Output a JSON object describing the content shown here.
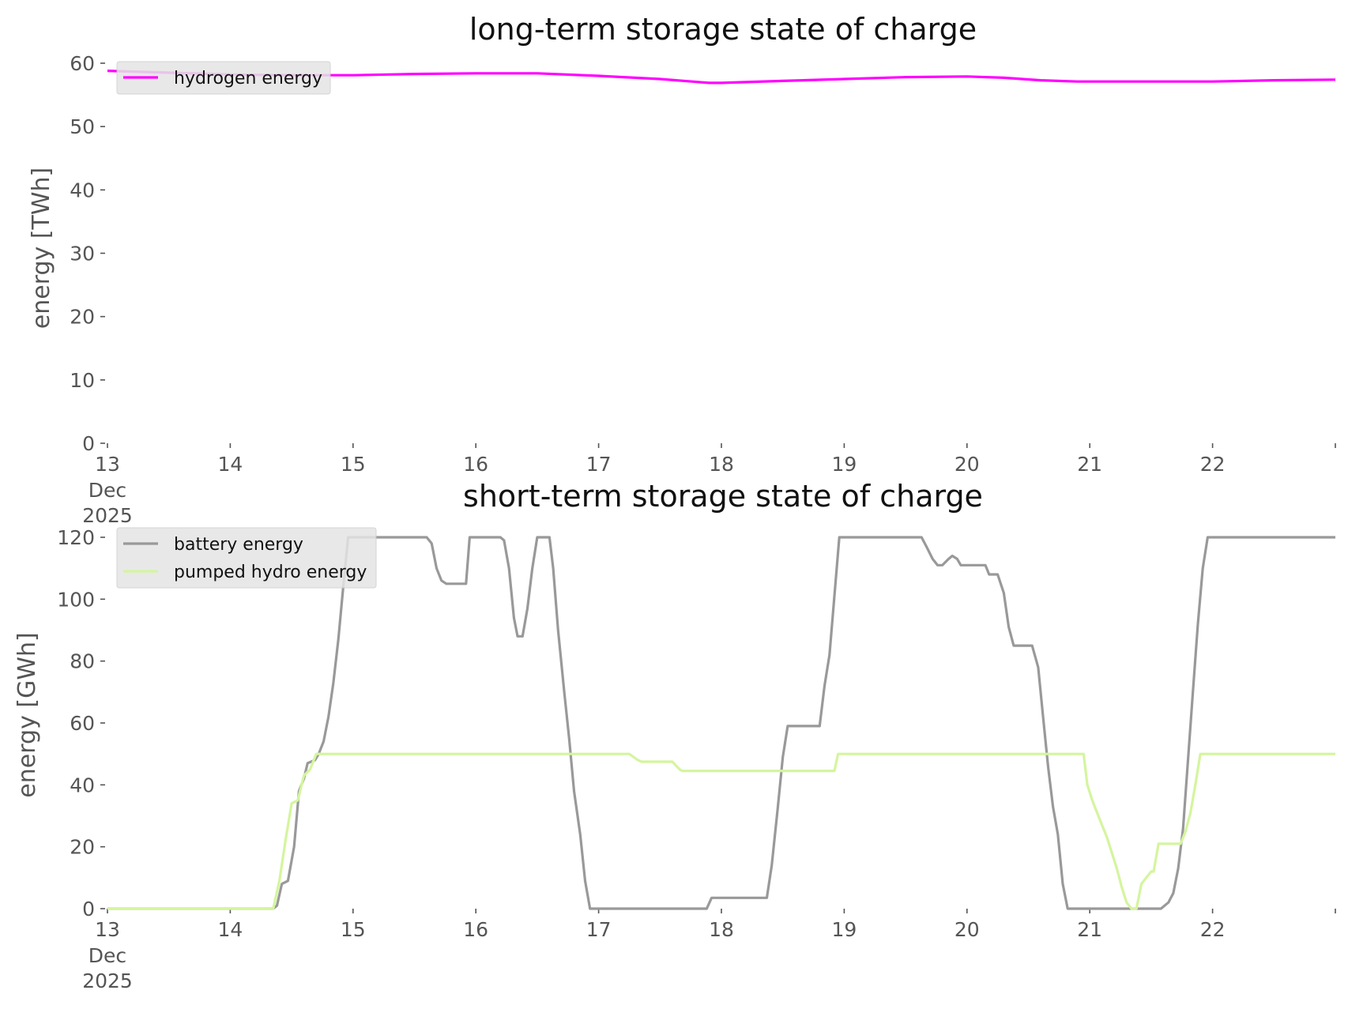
{
  "chart_data": [
    {
      "type": "line",
      "title": "long-term storage state of charge",
      "xlabel": "",
      "ylabel": "energy [TWh]",
      "ylim": [
        0,
        60
      ],
      "yticks": [
        0,
        10,
        20,
        30,
        40,
        50,
        60
      ],
      "xlim": [
        13,
        23
      ],
      "xticks": [
        {
          "value": 13,
          "label": "13"
        },
        {
          "value": 14,
          "label": "14"
        },
        {
          "value": 15,
          "label": "15"
        },
        {
          "value": 16,
          "label": "16"
        },
        {
          "value": 17,
          "label": "17"
        },
        {
          "value": 18,
          "label": "18"
        },
        {
          "value": 19,
          "label": "19"
        },
        {
          "value": 20,
          "label": "20"
        },
        {
          "value": 21,
          "label": "21"
        },
        {
          "value": 22,
          "label": "22"
        }
      ],
      "xtick_sublabels": [
        "Dec",
        "2025"
      ],
      "grid": false,
      "legend": "upper left",
      "series": [
        {
          "name": "hydrogen energy",
          "color": "#ff00ff",
          "points": [
            [
              13.0,
              58.8
            ],
            [
              13.5,
              58.5
            ],
            [
              14.0,
              58.2
            ],
            [
              14.5,
              58.1
            ],
            [
              15.0,
              58.1
            ],
            [
              15.5,
              58.3
            ],
            [
              16.0,
              58.4
            ],
            [
              16.5,
              58.4
            ],
            [
              17.0,
              58.0
            ],
            [
              17.5,
              57.5
            ],
            [
              17.9,
              56.9
            ],
            [
              18.0,
              56.9
            ],
            [
              18.5,
              57.2
            ],
            [
              19.0,
              57.5
            ],
            [
              19.5,
              57.8
            ],
            [
              20.0,
              57.9
            ],
            [
              20.3,
              57.7
            ],
            [
              20.6,
              57.3
            ],
            [
              20.9,
              57.1
            ],
            [
              21.0,
              57.1
            ],
            [
              21.5,
              57.1
            ],
            [
              22.0,
              57.1
            ],
            [
              22.5,
              57.3
            ],
            [
              23.0,
              57.4
            ]
          ]
        }
      ]
    },
    {
      "type": "line",
      "title": "short-term storage state of charge",
      "xlabel": "",
      "ylabel": "energy [GWh]",
      "ylim": [
        0,
        120
      ],
      "yticks": [
        0,
        20,
        40,
        60,
        80,
        100,
        120
      ],
      "xlim": [
        13,
        23
      ],
      "xticks": [
        {
          "value": 13,
          "label": "13"
        },
        {
          "value": 14,
          "label": "14"
        },
        {
          "value": 15,
          "label": "15"
        },
        {
          "value": 16,
          "label": "16"
        },
        {
          "value": 17,
          "label": "17"
        },
        {
          "value": 18,
          "label": "18"
        },
        {
          "value": 19,
          "label": "19"
        },
        {
          "value": 20,
          "label": "20"
        },
        {
          "value": 21,
          "label": "21"
        },
        {
          "value": 22,
          "label": "22"
        }
      ],
      "xtick_sublabels": [
        "Dec",
        "2025"
      ],
      "grid": false,
      "legend": "upper left",
      "series": [
        {
          "name": "battery energy",
          "color": "#999999",
          "points": [
            [
              13.0,
              0
            ],
            [
              14.0,
              0
            ],
            [
              14.35,
              0
            ],
            [
              14.38,
              1
            ],
            [
              14.42,
              8
            ],
            [
              14.47,
              9
            ],
            [
              14.52,
              20
            ],
            [
              14.56,
              38
            ],
            [
              14.6,
              42
            ],
            [
              14.63,
              47
            ],
            [
              14.69,
              48
            ],
            [
              14.72,
              50
            ],
            [
              14.76,
              54
            ],
            [
              14.8,
              62
            ],
            [
              14.84,
              73
            ],
            [
              14.88,
              87
            ],
            [
              14.92,
              104
            ],
            [
              14.96,
              120
            ],
            [
              15.0,
              120
            ],
            [
              15.3,
              120
            ],
            [
              15.5,
              120
            ],
            [
              15.6,
              120
            ],
            [
              15.64,
              118
            ],
            [
              15.68,
              110
            ],
            [
              15.72,
              106
            ],
            [
              15.76,
              105
            ],
            [
              15.8,
              105
            ],
            [
              15.92,
              105
            ],
            [
              15.95,
              120
            ],
            [
              16.0,
              120
            ],
            [
              16.2,
              120
            ],
            [
              16.23,
              119
            ],
            [
              16.27,
              110
            ],
            [
              16.31,
              94
            ],
            [
              16.34,
              88
            ],
            [
              16.38,
              88
            ],
            [
              16.42,
              97
            ],
            [
              16.46,
              110
            ],
            [
              16.5,
              120
            ],
            [
              16.6,
              120
            ],
            [
              16.63,
              110
            ],
            [
              16.67,
              90
            ],
            [
              16.72,
              70
            ],
            [
              16.76,
              55
            ],
            [
              16.8,
              38
            ],
            [
              16.85,
              24
            ],
            [
              16.89,
              9
            ],
            [
              16.93,
              0
            ],
            [
              17.0,
              0
            ],
            [
              17.5,
              0
            ],
            [
              17.88,
              0
            ],
            [
              17.92,
              3.5
            ],
            [
              18.0,
              3.5
            ],
            [
              18.37,
              3.5
            ],
            [
              18.41,
              14
            ],
            [
              18.46,
              33
            ],
            [
              18.5,
              49
            ],
            [
              18.54,
              59
            ],
            [
              18.6,
              59
            ],
            [
              18.8,
              59
            ],
            [
              18.84,
              72
            ],
            [
              18.88,
              82
            ],
            [
              18.92,
              101
            ],
            [
              18.96,
              120
            ],
            [
              19.0,
              120
            ],
            [
              19.3,
              120
            ],
            [
              19.63,
              120
            ],
            [
              19.67,
              117
            ],
            [
              19.72,
              113
            ],
            [
              19.76,
              111
            ],
            [
              19.8,
              111
            ],
            [
              19.85,
              113
            ],
            [
              19.88,
              114
            ],
            [
              19.92,
              113
            ],
            [
              19.95,
              111
            ],
            [
              20.0,
              111
            ],
            [
              20.15,
              111
            ],
            [
              20.18,
              108
            ],
            [
              20.25,
              108
            ],
            [
              20.3,
              102
            ],
            [
              20.34,
              91
            ],
            [
              20.38,
              85
            ],
            [
              20.43,
              85
            ],
            [
              20.5,
              85
            ],
            [
              20.53,
              85
            ],
            [
              20.58,
              78
            ],
            [
              20.62,
              62
            ],
            [
              20.66,
              46
            ],
            [
              20.7,
              33
            ],
            [
              20.74,
              24
            ],
            [
              20.78,
              8
            ],
            [
              20.82,
              0
            ],
            [
              21.0,
              0
            ],
            [
              21.5,
              0
            ],
            [
              21.58,
              0
            ],
            [
              21.64,
              2
            ],
            [
              21.68,
              5
            ],
            [
              21.72,
              13
            ],
            [
              21.76,
              26
            ],
            [
              21.8,
              48
            ],
            [
              21.84,
              70
            ],
            [
              21.88,
              92
            ],
            [
              21.92,
              110
            ],
            [
              21.96,
              120
            ],
            [
              22.0,
              120
            ],
            [
              22.5,
              120
            ],
            [
              23.0,
              120
            ]
          ]
        },
        {
          "name": "pumped hydro energy",
          "color": "#d4f59e",
          "points": [
            [
              13.0,
              0
            ],
            [
              14.0,
              0
            ],
            [
              14.35,
              0
            ],
            [
              14.4,
              9
            ],
            [
              14.45,
              22
            ],
            [
              14.5,
              34
            ],
            [
              14.55,
              35
            ],
            [
              14.6,
              43
            ],
            [
              14.65,
              45
            ],
            [
              14.7,
              50
            ],
            [
              15.0,
              50
            ],
            [
              16.0,
              50
            ],
            [
              17.0,
              50
            ],
            [
              17.25,
              50
            ],
            [
              17.32,
              48
            ],
            [
              17.35,
              47.5
            ],
            [
              17.6,
              47.5
            ],
            [
              17.66,
              45
            ],
            [
              17.68,
              44.5
            ],
            [
              18.0,
              44.5
            ],
            [
              18.5,
              44.5
            ],
            [
              18.92,
              44.5
            ],
            [
              18.95,
              50
            ],
            [
              19.0,
              50
            ],
            [
              20.0,
              50
            ],
            [
              20.95,
              50
            ],
            [
              20.98,
              40
            ],
            [
              21.02,
              35
            ],
            [
              21.06,
              31
            ],
            [
              21.1,
              27
            ],
            [
              21.14,
              23
            ],
            [
              21.18,
              18
            ],
            [
              21.22,
              13
            ],
            [
              21.26,
              7
            ],
            [
              21.3,
              2
            ],
            [
              21.34,
              0
            ],
            [
              21.38,
              0
            ],
            [
              21.42,
              8
            ],
            [
              21.46,
              10
            ],
            [
              21.5,
              12
            ],
            [
              21.52,
              12
            ],
            [
              21.56,
              21
            ],
            [
              21.6,
              21
            ],
            [
              21.7,
              21
            ],
            [
              21.74,
              21
            ],
            [
              21.78,
              25
            ],
            [
              21.82,
              31
            ],
            [
              21.86,
              40
            ],
            [
              21.9,
              50
            ],
            [
              22.0,
              50
            ],
            [
              23.0,
              50
            ]
          ]
        }
      ]
    }
  ]
}
